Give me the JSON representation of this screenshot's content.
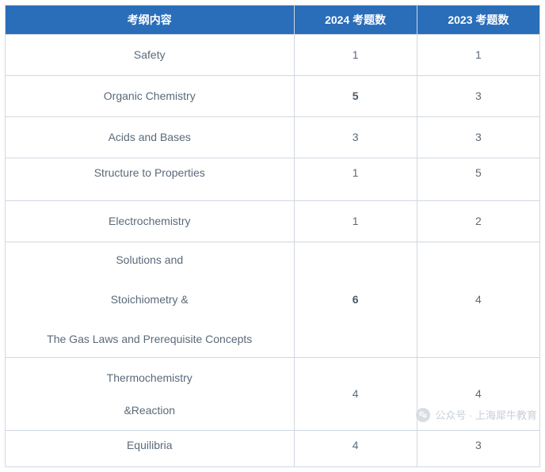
{
  "table": {
    "header_bg": "#2a6db8",
    "header_fg": "#ffffff",
    "border_color": "#d0d8e0",
    "cell_fg": "#5a6a7a",
    "columns": [
      {
        "label": "考纲内容",
        "width_pct": 54
      },
      {
        "label": "2024 考题数",
        "width_pct": 23
      },
      {
        "label": "2023 考题数",
        "width_pct": 23
      }
    ],
    "rows": [
      {
        "topic_lines": [
          "Safety"
        ],
        "y2024": "1",
        "y2023": "1",
        "bold2024": false,
        "h": "h1"
      },
      {
        "topic_lines": [
          "Organic Chemistry"
        ],
        "y2024": "5",
        "y2023": "3",
        "bold2024": true,
        "h": "h1"
      },
      {
        "topic_lines": [
          "Acids and Bases"
        ],
        "y2024": "3",
        "y2023": "3",
        "bold2024": false,
        "h": "h1"
      },
      {
        "topic_lines": [
          "Structure to Properties"
        ],
        "y2024": "1",
        "y2023": "5",
        "bold2024": false,
        "h": "h2"
      },
      {
        "topic_lines": [
          "Electrochemistry"
        ],
        "y2024": "1",
        "y2023": "2",
        "bold2024": false,
        "h": "h1"
      },
      {
        "topic_lines": [
          "Solutions and",
          "Stoichiometry &",
          "The Gas Laws and Prerequisite Concepts"
        ],
        "y2024": "6",
        "y2023": "4",
        "bold2024": true,
        "h": "h3"
      },
      {
        "topic_lines": [
          "Thermochemistry",
          "&Reaction"
        ],
        "y2024": "4",
        "y2023": "4",
        "bold2024": false,
        "h": "h4"
      },
      {
        "topic_lines": [
          "Equilibria"
        ],
        "y2024": "4",
        "y2023": "3",
        "bold2024": false,
        "h": "h5"
      }
    ]
  },
  "watermark": {
    "prefix": "公众号 · ",
    "name": "上海犀牛教育"
  }
}
